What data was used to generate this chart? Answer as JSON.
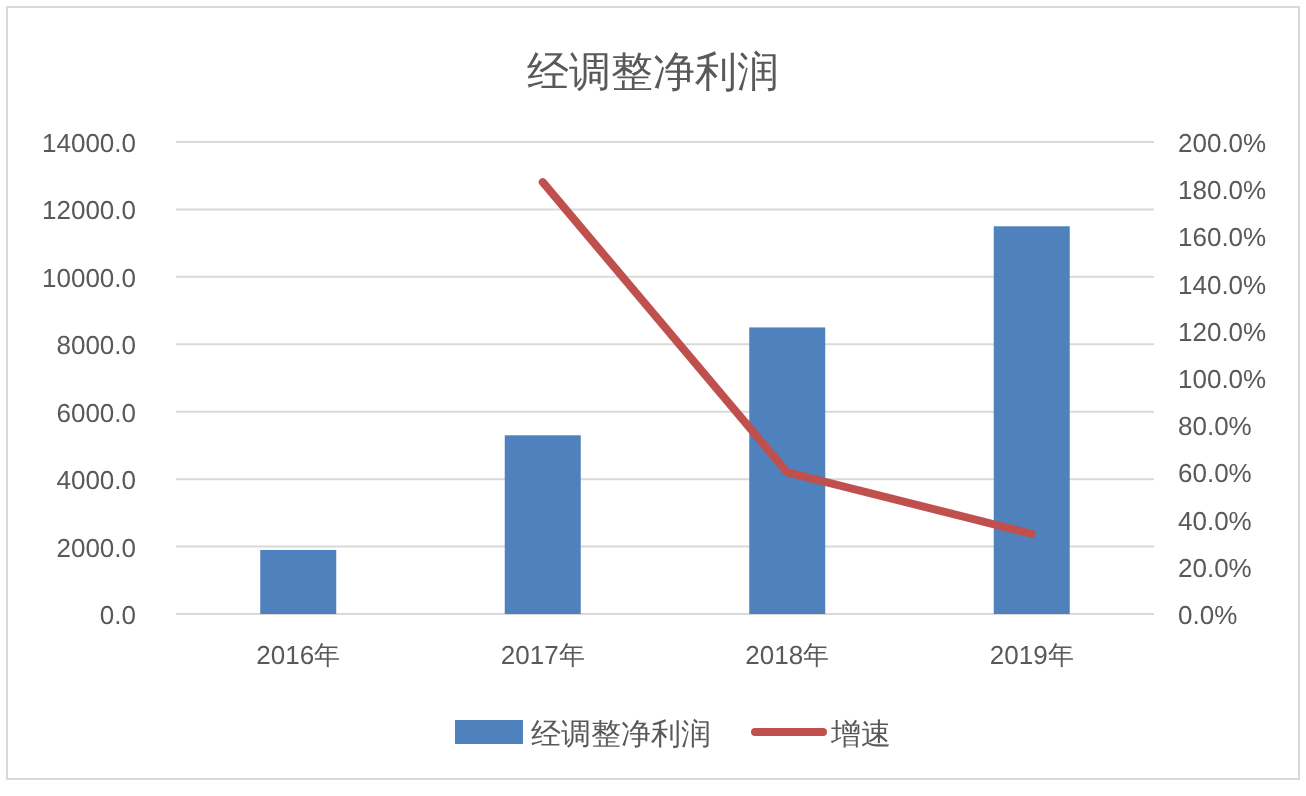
{
  "chart_data": {
    "type": "bar",
    "title": "经调整净利润",
    "categories": [
      "2016年",
      "2017年",
      "2018年",
      "2019年"
    ],
    "series": [
      {
        "name": "经调整净利润",
        "color": "#4f81bd",
        "values": [
          1900,
          5300,
          8500,
          11500
        ]
      },
      {
        "name": "增速",
        "type": "line",
        "axis": "y2",
        "color": "#c0504d",
        "values": [
          null,
          183,
          60,
          34
        ]
      }
    ],
    "ylim": [
      0,
      14000
    ],
    "yticks": [
      {
        "value": 0,
        "label": "0.0"
      },
      {
        "value": 2000,
        "label": "2000.0"
      },
      {
        "value": 4000,
        "label": "4000.0"
      },
      {
        "value": 6000,
        "label": "6000.0"
      },
      {
        "value": 8000,
        "label": "8000.0"
      },
      {
        "value": 10000,
        "label": "10000.0"
      },
      {
        "value": 12000,
        "label": "12000.0"
      },
      {
        "value": 14000,
        "label": "14000.0"
      }
    ],
    "y2lim": [
      0,
      200
    ],
    "y2ticks": [
      {
        "value": 0,
        "label": "0.0%"
      },
      {
        "value": 20,
        "label": "20.0%"
      },
      {
        "value": 40,
        "label": "40.0%"
      },
      {
        "value": 60,
        "label": "60.0%"
      },
      {
        "value": 80,
        "label": "80.0%"
      },
      {
        "value": 100,
        "label": "100.0%"
      },
      {
        "value": 120,
        "label": "120.0%"
      },
      {
        "value": 140,
        "label": "140.0%"
      },
      {
        "value": 160,
        "label": "160.0%"
      },
      {
        "value": 180,
        "label": "180.0%"
      },
      {
        "value": 200,
        "label": "200.0%"
      }
    ],
    "grid": "y",
    "legend": "bottom"
  }
}
